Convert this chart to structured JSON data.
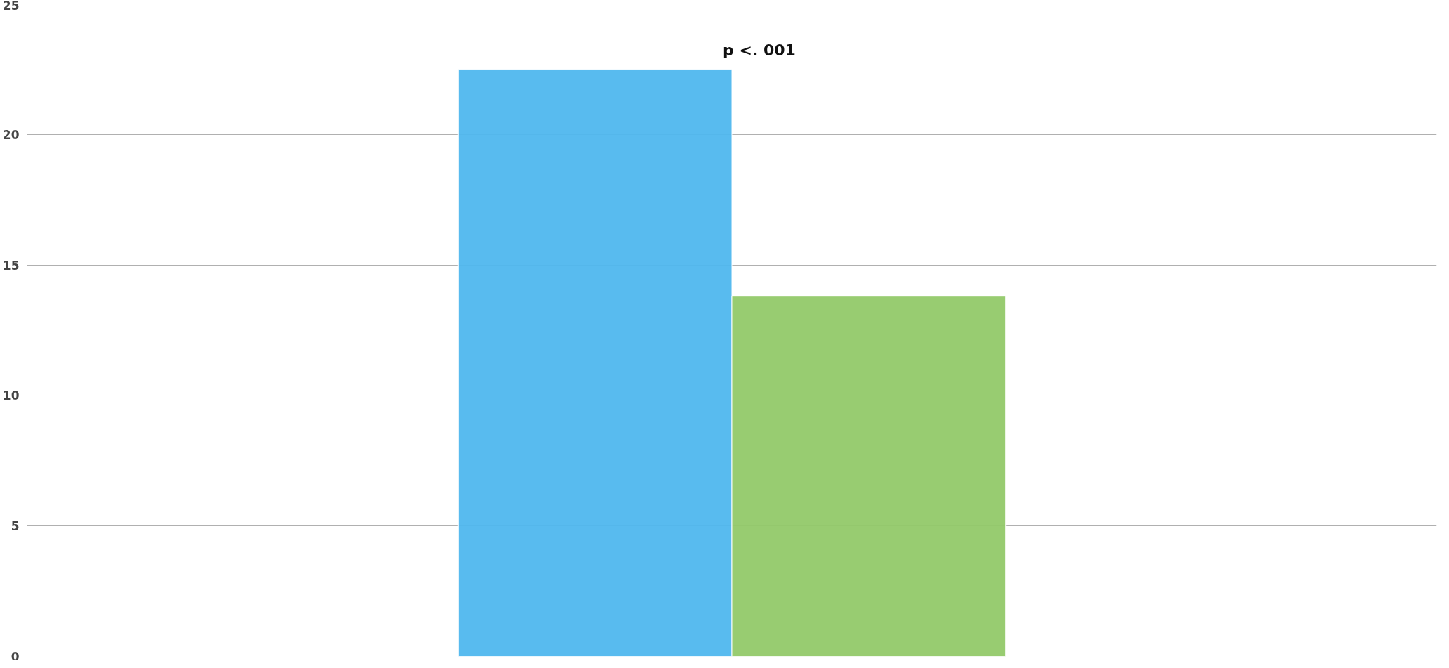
{
  "chart_data": {
    "type": "bar",
    "categories": [
      null,
      null
    ],
    "values": [
      22.5,
      13.8
    ],
    "colors": [
      "#4fb7ee",
      "#92c969"
    ],
    "ylim": [
      0,
      25
    ],
    "yticks": [
      0,
      5,
      10,
      15,
      20,
      25
    ],
    "grid": "y",
    "annotations": [
      "p <. 001"
    ]
  }
}
